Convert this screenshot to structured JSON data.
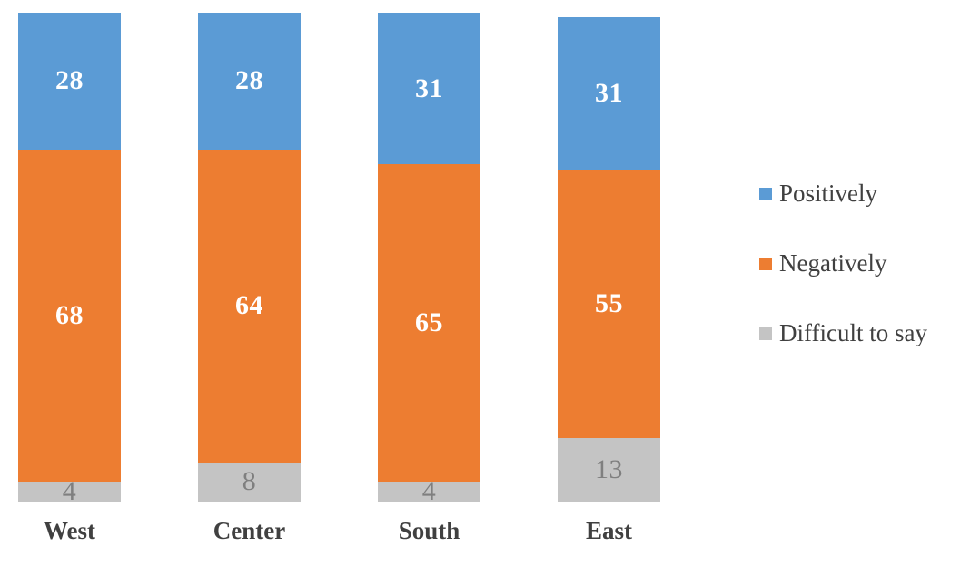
{
  "chart_data": {
    "type": "bar",
    "subtype": "stacked-column",
    "title": "",
    "categories": [
      "West",
      "Center",
      "South",
      "East"
    ],
    "series": [
      {
        "name": "Positively",
        "color": "#5B9BD5",
        "label_color": "#FFFFFF",
        "label_bold": true,
        "values": [
          28,
          28,
          31,
          31
        ]
      },
      {
        "name": "Negatively",
        "color": "#ED7D31",
        "label_color": "#FFFFFF",
        "label_bold": true,
        "values": [
          68,
          64,
          65,
          55
        ]
      },
      {
        "name": "Difficult to say",
        "color": "#C4C4C4",
        "label_color": "#7F7F7F",
        "label_bold": false,
        "values": [
          4,
          8,
          4,
          13
        ]
      }
    ],
    "stack_order_top_to_bottom": [
      "Positively",
      "Negatively",
      "Difficult to say"
    ],
    "value_axis": {
      "min": 0,
      "max": 100,
      "visible": false
    },
    "grid": false,
    "data_labels": true,
    "legend_position": "right",
    "xlabel": "",
    "ylabel": ""
  },
  "legend": {
    "items": [
      {
        "label": "Positively",
        "color": "#5B9BD5"
      },
      {
        "label": "Negatively",
        "color": "#ED7D31"
      },
      {
        "label": "Difficult to say",
        "color": "#C4C4C4"
      }
    ]
  },
  "category_label_color": "#404040",
  "background_color": "#FFFFFF"
}
